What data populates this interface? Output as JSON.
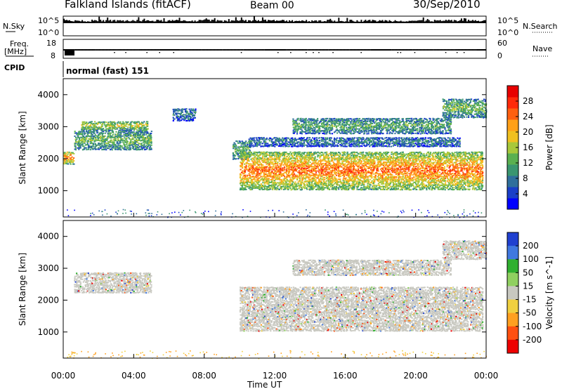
{
  "header": {
    "station": "Falkland Islands (fitACF)",
    "beam": "Beam 00",
    "date": "30/Sep/2010"
  },
  "panels": {
    "nsky": {
      "label": "N.Sky",
      "ticks": [
        "10^5",
        "10^0"
      ]
    },
    "nsearch": {
      "label": "N.Search",
      "ticks": [
        "10^5",
        "10^0"
      ]
    },
    "freq": {
      "label": "Freq.",
      "unit": "[MHz]",
      "ticks": [
        "18",
        "8"
      ]
    },
    "nave": {
      "label": "Nave",
      "ticks": [
        "60",
        "0"
      ]
    },
    "cpid": {
      "label": "CPID",
      "mode": "normal (fast) 151"
    }
  },
  "chart_data": [
    {
      "type": "heatmap",
      "name": "power",
      "ylabel": "Slant Range [km]",
      "xlabel": "Time UT",
      "x_ticks": [
        "00:00",
        "04:00",
        "08:00",
        "12:00",
        "16:00",
        "20:00",
        "00:00"
      ],
      "xlim_hours": [
        0,
        24
      ],
      "ylim": [
        180,
        4500
      ],
      "y_ticks": [
        1000,
        2000,
        3000,
        4000
      ],
      "colorbar": {
        "label": "Power [dB]",
        "range": [
          0,
          32
        ],
        "ticks": [
          4,
          8,
          12,
          16,
          20,
          24,
          28
        ],
        "colors": [
          "#0000ff",
          "#1a3fc8",
          "#2f6f9c",
          "#3a9670",
          "#5ab050",
          "#a8c83a",
          "#f0c020",
          "#ffa018",
          "#ff6010",
          "#ff2a0a",
          "#e80000"
        ]
      },
      "echo_regions": [
        {
          "t0": 0.0,
          "t1": 0.6,
          "r0": 1850,
          "r1": 2250,
          "level": 26
        },
        {
          "t0": 0.6,
          "t1": 5.0,
          "r0": 2300,
          "r1": 2900,
          "level": 14
        },
        {
          "t0": 1.0,
          "t1": 4.8,
          "r0": 2900,
          "r1": 3200,
          "level": 18
        },
        {
          "t0": 6.2,
          "t1": 7.5,
          "r0": 3200,
          "r1": 3600,
          "level": 8
        },
        {
          "t0": 9.6,
          "t1": 10.6,
          "r0": 2000,
          "r1": 2600,
          "level": 12
        },
        {
          "t0": 10.0,
          "t1": 23.8,
          "r0": 1050,
          "r1": 2250,
          "level": 26
        },
        {
          "t0": 10.5,
          "t1": 22.5,
          "r0": 2400,
          "r1": 2700,
          "level": 8
        },
        {
          "t0": 13.0,
          "t1": 22.0,
          "r0": 2800,
          "r1": 3300,
          "level": 12
        },
        {
          "t0": 21.5,
          "t1": 24.0,
          "r0": 3300,
          "r1": 3900,
          "level": 14
        }
      ]
    },
    {
      "type": "heatmap",
      "name": "velocity",
      "ylabel": "Slant Range [km]",
      "xlabel": "Time UT",
      "x_ticks": [
        "00:00",
        "04:00",
        "08:00",
        "12:00",
        "16:00",
        "20:00",
        "00:00"
      ],
      "xlim_hours": [
        0,
        24
      ],
      "ylim": [
        180,
        4500
      ],
      "y_ticks": [
        1000,
        2000,
        3000,
        4000
      ],
      "colorbar": {
        "label": "Velocity [m s^-1]",
        "ticks": [
          200,
          100,
          50,
          15,
          -15,
          -50,
          -100,
          -200
        ],
        "colors": [
          "#2040d0",
          "#4078e0",
          "#30b030",
          "#90d060",
          "#c8c8c0",
          "#f0d040",
          "#ffa020",
          "#ff5010",
          "#ee0000"
        ]
      },
      "echo_regions": [
        {
          "t0": 0.6,
          "t1": 5.0,
          "r0": 2250,
          "r1": 2900,
          "level": 0
        },
        {
          "t0": 10.0,
          "t1": 23.8,
          "r0": 1050,
          "r1": 2450,
          "level": 0
        },
        {
          "t0": 13.0,
          "t1": 22.0,
          "r0": 2800,
          "r1": 3300,
          "level": 0
        },
        {
          "t0": 21.5,
          "t1": 24.0,
          "r0": 3300,
          "r1": 3900,
          "level": 0
        }
      ]
    }
  ]
}
